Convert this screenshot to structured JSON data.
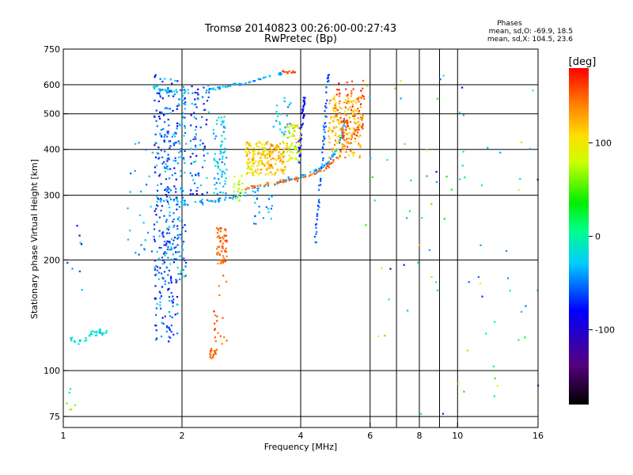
{
  "chart_data": {
    "type": "scatter",
    "title": "Tromsø 20140823 00:26:00-00:27:43",
    "subtitle": "RwPretec (Bp)",
    "xlabel": "Frequency [MHz]",
    "ylabel": "Stationary phase Virtual Height [km]",
    "x_scale": "log",
    "y_scale": "log",
    "xlim": [
      1,
      16
    ],
    "ylim": [
      70,
      750
    ],
    "x_ticks": [
      1,
      2,
      4,
      6,
      8,
      10,
      16
    ],
    "x_tick_labels": [
      "1",
      "2",
      "4",
      "6",
      "8",
      "10",
      "16"
    ],
    "x_minor_gridlines": [
      7,
      9
    ],
    "y_ticks": [
      75,
      100,
      200,
      300,
      400,
      500,
      600,
      750
    ],
    "y_tick_labels": [
      "75",
      "100",
      "200",
      "300",
      "400",
      "500",
      "600",
      "750"
    ],
    "grid": true,
    "legend": {
      "heading": "Phases",
      "lines": [
        "mean, sd,O: -69.9, 18.5",
        "mean, sd,X: 104.5, 23.6"
      ],
      "placement": "top-right"
    },
    "colorbar": {
      "label": "[deg]",
      "range": [
        -180,
        180
      ],
      "ticks": [
        100,
        0,
        -100
      ],
      "tick_labels": [
        "100",
        "0",
        "-100"
      ],
      "colormap": "rainbow"
    },
    "traces": [
      {
        "kind": "curve",
        "points": [
          [
            1.72,
            292
          ],
          [
            1.9,
            287
          ],
          [
            2.1,
            286
          ],
          [
            2.4,
            290
          ],
          [
            2.7,
            297
          ],
          [
            3.0,
            307
          ],
          [
            3.3,
            318
          ],
          [
            3.6,
            328
          ],
          [
            3.9,
            336
          ],
          [
            4.2,
            343
          ],
          [
            4.45,
            352
          ],
          [
            4.7,
            368
          ],
          [
            4.9,
            395
          ],
          [
            5.1,
            440
          ],
          [
            5.2,
            480
          ]
        ],
        "value": -40,
        "spread": 0.02,
        "n": 130
      },
      {
        "kind": "curve",
        "points": [
          [
            2.9,
            313
          ],
          [
            3.2,
            320
          ],
          [
            3.5,
            326
          ],
          [
            3.8,
            331
          ],
          [
            4.1,
            336
          ],
          [
            4.4,
            345
          ],
          [
            4.7,
            360
          ],
          [
            5.0,
            385
          ],
          [
            5.3,
            420
          ],
          [
            5.6,
            460
          ],
          [
            5.75,
            500
          ]
        ],
        "value": 150,
        "spread": 0.02,
        "n": 90
      },
      {
        "kind": "curve",
        "points": [
          [
            2.3,
            580
          ],
          [
            2.5,
            588
          ],
          [
            2.8,
            602
          ],
          [
            3.0,
            612
          ],
          [
            3.3,
            630
          ],
          [
            3.6,
            645
          ]
        ],
        "value": -40,
        "spread": 0.015,
        "n": 55
      },
      {
        "kind": "curve",
        "points": [
          [
            3.6,
            652
          ],
          [
            3.75,
            650
          ],
          [
            3.9,
            648
          ]
        ],
        "value": 160,
        "spread": 0.01,
        "n": 12
      },
      {
        "kind": "curve",
        "points": [
          [
            1.7,
            590
          ],
          [
            1.8,
            578
          ],
          [
            1.9,
            575
          ],
          [
            2.1,
            578
          ]
        ],
        "value": -30,
        "spread": 0.02,
        "n": 35
      },
      {
        "kind": "curve",
        "points": [
          [
            1.03,
            124
          ],
          [
            1.08,
            120
          ],
          [
            1.12,
            122
          ],
          [
            1.2,
            127
          ],
          [
            1.3,
            128
          ]
        ],
        "value": -15,
        "spread": 0.03,
        "n": 40
      },
      {
        "kind": "curve",
        "points": [
          [
            4.35,
            220
          ],
          [
            4.45,
            300
          ],
          [
            4.55,
            380
          ],
          [
            4.6,
            460
          ],
          [
            4.65,
            560
          ],
          [
            4.7,
            640
          ]
        ],
        "value": -60,
        "spread": 0.02,
        "n": 60
      },
      {
        "kind": "curve",
        "points": [
          [
            3.95,
            360
          ],
          [
            4.0,
            430
          ],
          [
            4.05,
            500
          ],
          [
            4.1,
            560
          ]
        ],
        "value": -80,
        "spread": 0.02,
        "n": 40
      },
      {
        "kind": "cloud",
        "x": [
          1.7,
          1.95
        ],
        "y": [
          120,
          640
        ],
        "value": -60,
        "spread": 60,
        "n": 320
      },
      {
        "kind": "cloud",
        "x": [
          1.95,
          2.05
        ],
        "y": [
          175,
          600
        ],
        "value": -40,
        "spread": 50,
        "n": 90
      },
      {
        "kind": "cloud",
        "x": [
          2.1,
          2.35
        ],
        "y": [
          300,
          600
        ],
        "value": -60,
        "spread": 60,
        "n": 80
      },
      {
        "kind": "cloud",
        "x": [
          2.4,
          2.6
        ],
        "y": [
          300,
          500
        ],
        "value": -30,
        "spread": 40,
        "n": 70
      },
      {
        "kind": "cloud",
        "x": [
          2.45,
          2.6
        ],
        "y": [
          195,
          245
        ],
        "value": 150,
        "spread": 25,
        "n": 60
      },
      {
        "kind": "cloud",
        "x": [
          2.7,
          2.85
        ],
        "y": [
          290,
          340
        ],
        "value": 70,
        "spread": 30,
        "n": 20
      },
      {
        "kind": "cloud",
        "x": [
          2.35,
          2.45
        ],
        "y": [
          108,
          115
        ],
        "value": 150,
        "spread": 15,
        "n": 18
      },
      {
        "kind": "cloud",
        "x": [
          2.4,
          2.6
        ],
        "y": [
          118,
          185
        ],
        "value": 150,
        "spread": 25,
        "n": 20
      },
      {
        "kind": "cloud",
        "x": [
          2.9,
          3.3
        ],
        "y": [
          340,
          420
        ],
        "value": 110,
        "spread": 50,
        "n": 130
      },
      {
        "kind": "cloud",
        "x": [
          3.3,
          3.7
        ],
        "y": [
          340,
          420
        ],
        "value": 120,
        "spread": 45,
        "n": 90
      },
      {
        "kind": "cloud",
        "x": [
          3.6,
          4.0
        ],
        "y": [
          370,
          470
        ],
        "value": 90,
        "spread": 60,
        "n": 70
      },
      {
        "kind": "cloud",
        "x": [
          4.7,
          5.7
        ],
        "y": [
          380,
          560
        ],
        "value": 120,
        "spread": 45,
        "n": 170
      },
      {
        "kind": "cloud",
        "x": [
          4.9,
          5.8
        ],
        "y": [
          420,
          620
        ],
        "value": 160,
        "spread": 25,
        "n": 70
      },
      {
        "kind": "cloud",
        "x": [
          1.45,
          1.7
        ],
        "y": [
          200,
          420
        ],
        "value": -40,
        "spread": 40,
        "n": 25
      },
      {
        "kind": "cloud",
        "x": [
          3.0,
          3.4
        ],
        "y": [
          250,
          300
        ],
        "value": -40,
        "spread": 40,
        "n": 20
      },
      {
        "kind": "cloud",
        "x": [
          3.4,
          3.8
        ],
        "y": [
          440,
          560
        ],
        "value": -30,
        "spread": 40,
        "n": 25
      },
      {
        "kind": "cloud",
        "x": [
          5.8,
          16
        ],
        "y": [
          75,
          640
        ],
        "value": 0,
        "spread": 170,
        "n": 80
      },
      {
        "kind": "cloud",
        "x": [
          1.02,
          1.08
        ],
        "y": [
          78,
          95
        ],
        "value": 40,
        "spread": 120,
        "n": 6
      },
      {
        "kind": "cloud",
        "x": [
          1.02,
          1.12
        ],
        "y": [
          140,
          250
        ],
        "value": -50,
        "spread": 50,
        "n": 8
      }
    ]
  }
}
